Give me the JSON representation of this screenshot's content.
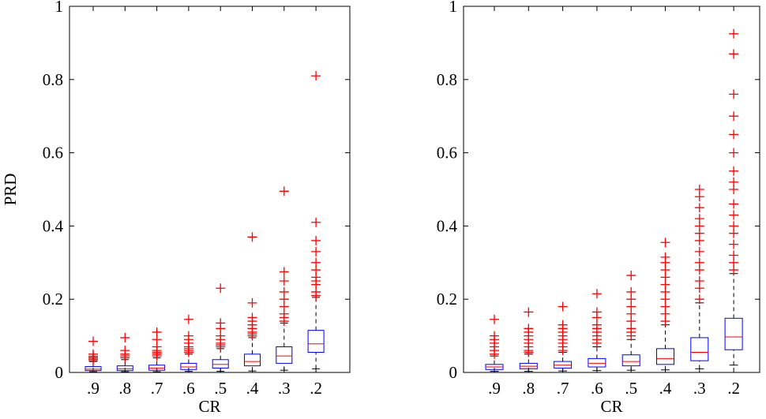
{
  "chart_data": [
    {
      "type": "box",
      "ylabel": "PRD",
      "xlabel": "CR",
      "categories": [
        ".9",
        ".8",
        ".7",
        ".6",
        ".5",
        ".4",
        ".3",
        ".2"
      ],
      "ylim": [
        0,
        1
      ],
      "yticks": [
        0,
        0.2,
        0.4,
        0.6,
        0.8,
        1
      ],
      "box_color": "#0000ff",
      "median_color": "#ff0000",
      "whisker_color": "#000000",
      "outlier_color": "#ff0000",
      "boxes": [
        {
          "min": 0.002,
          "q1": 0.005,
          "median": 0.009,
          "q3": 0.016,
          "max": 0.03,
          "outliers": [
            0.032,
            0.036,
            0.04,
            0.044,
            0.05,
            0.085
          ]
        },
        {
          "min": 0.002,
          "q1": 0.005,
          "median": 0.01,
          "q3": 0.018,
          "max": 0.035,
          "outliers": [
            0.04,
            0.045,
            0.05,
            0.06,
            0.095
          ]
        },
        {
          "min": 0.002,
          "q1": 0.006,
          "median": 0.012,
          "q3": 0.02,
          "max": 0.04,
          "outliers": [
            0.045,
            0.05,
            0.055,
            0.06,
            0.07,
            0.09,
            0.11
          ]
        },
        {
          "min": 0.003,
          "q1": 0.008,
          "median": 0.015,
          "q3": 0.025,
          "max": 0.05,
          "outliers": [
            0.055,
            0.06,
            0.065,
            0.07,
            0.08,
            0.09,
            0.1,
            0.145
          ]
        },
        {
          "min": 0.003,
          "q1": 0.012,
          "median": 0.022,
          "q3": 0.035,
          "max": 0.065,
          "outliers": [
            0.07,
            0.075,
            0.08,
            0.09,
            0.1,
            0.12,
            0.135,
            0.23
          ]
        },
        {
          "min": 0.004,
          "q1": 0.018,
          "median": 0.03,
          "q3": 0.05,
          "max": 0.095,
          "outliers": [
            0.1,
            0.105,
            0.11,
            0.12,
            0.13,
            0.14,
            0.15,
            0.19,
            0.37
          ]
        },
        {
          "min": 0.006,
          "q1": 0.025,
          "median": 0.045,
          "q3": 0.07,
          "max": 0.135,
          "outliers": [
            0.14,
            0.15,
            0.16,
            0.18,
            0.2,
            0.22,
            0.25,
            0.275,
            0.495
          ]
        },
        {
          "min": 0.01,
          "q1": 0.055,
          "median": 0.078,
          "q3": 0.115,
          "max": 0.205,
          "outliers": [
            0.21,
            0.22,
            0.24,
            0.25,
            0.26,
            0.28,
            0.3,
            0.33,
            0.36,
            0.41,
            0.81
          ]
        }
      ]
    },
    {
      "type": "box",
      "xlabel": "CR",
      "categories": [
        ".9",
        ".8",
        ".7",
        ".6",
        ".5",
        ".4",
        ".3",
        ".2"
      ],
      "ylim": [
        0,
        1
      ],
      "yticks": [
        0,
        0.2,
        0.4,
        0.6,
        0.8,
        1
      ],
      "box_color": "#0000ff",
      "median_color": "#ff0000",
      "whisker_color": "#000000",
      "outlier_color": "#ff0000",
      "boxes": [
        {
          "min": 0.003,
          "q1": 0.008,
          "median": 0.015,
          "q3": 0.022,
          "max": 0.045,
          "outliers": [
            0.05,
            0.06,
            0.07,
            0.08,
            0.09,
            0.1,
            0.145
          ]
        },
        {
          "min": 0.003,
          "q1": 0.01,
          "median": 0.017,
          "q3": 0.025,
          "max": 0.05,
          "outliers": [
            0.055,
            0.06,
            0.07,
            0.08,
            0.09,
            0.1,
            0.11,
            0.12,
            0.165
          ]
        },
        {
          "min": 0.004,
          "q1": 0.012,
          "median": 0.02,
          "q3": 0.03,
          "max": 0.055,
          "outliers": [
            0.06,
            0.07,
            0.08,
            0.09,
            0.1,
            0.11,
            0.12,
            0.13,
            0.18
          ]
        },
        {
          "min": 0.005,
          "q1": 0.015,
          "median": 0.025,
          "q3": 0.038,
          "max": 0.07,
          "outliers": [
            0.08,
            0.09,
            0.1,
            0.11,
            0.12,
            0.13,
            0.15,
            0.165,
            0.215
          ]
        },
        {
          "min": 0.006,
          "q1": 0.018,
          "median": 0.03,
          "q3": 0.048,
          "max": 0.09,
          "outliers": [
            0.1,
            0.11,
            0.12,
            0.14,
            0.16,
            0.18,
            0.2,
            0.22,
            0.265
          ]
        },
        {
          "min": 0.007,
          "q1": 0.022,
          "median": 0.038,
          "q3": 0.065,
          "max": 0.13,
          "outliers": [
            0.14,
            0.16,
            0.18,
            0.2,
            0.22,
            0.24,
            0.26,
            0.28,
            0.3,
            0.315,
            0.355
          ]
        },
        {
          "min": 0.01,
          "q1": 0.032,
          "median": 0.055,
          "q3": 0.095,
          "max": 0.19,
          "outliers": [
            0.2,
            0.23,
            0.25,
            0.28,
            0.3,
            0.33,
            0.36,
            0.38,
            0.4,
            0.42,
            0.45,
            0.48,
            0.5
          ]
        },
        {
          "min": 0.02,
          "q1": 0.062,
          "median": 0.097,
          "q3": 0.148,
          "max": 0.27,
          "outliers": [
            0.28,
            0.3,
            0.32,
            0.35,
            0.38,
            0.4,
            0.43,
            0.46,
            0.5,
            0.52,
            0.55,
            0.6,
            0.65,
            0.7,
            0.76,
            0.87,
            0.925
          ]
        }
      ]
    }
  ]
}
